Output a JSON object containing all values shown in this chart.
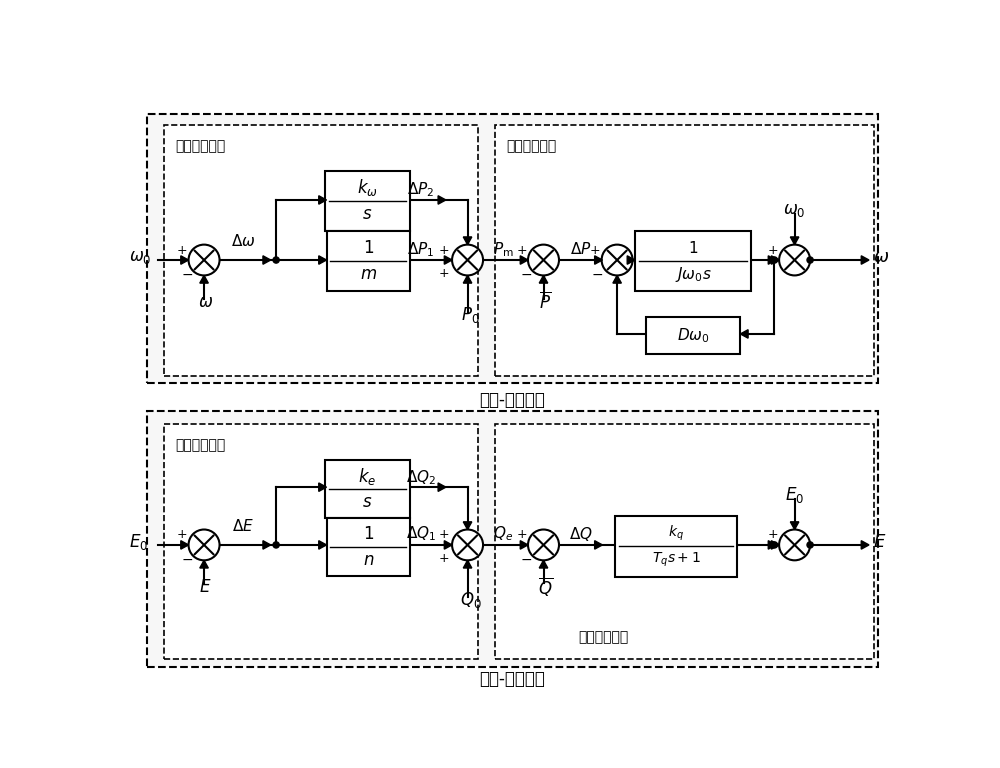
{
  "title_top": "有功-频率控制",
  "title_bottom": "无功-电压控制",
  "label_vsg_speed": "虚拟调速控制",
  "label_vsg_inertia": "虚拟慣性控制",
  "label_vsg_excite": "虚拟励磁控制",
  "label_reactive_inertia": "无功慣性控制",
  "figw": 10.0,
  "figh": 7.68,
  "dpi": 100
}
